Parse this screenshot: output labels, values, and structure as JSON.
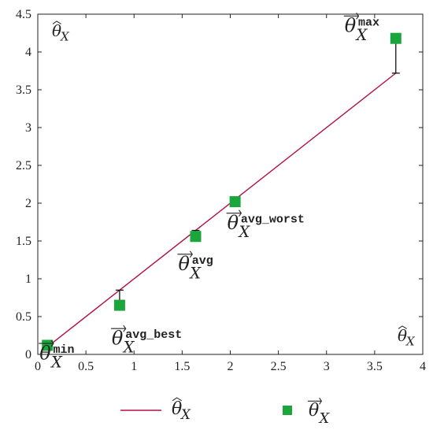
{
  "chart_data": {
    "type": "scatter",
    "title": "",
    "xlabel": "",
    "ylabel": "",
    "xlim": [
      0,
      4
    ],
    "ylim": [
      0,
      4.5
    ],
    "xticks": [
      "0",
      "0.5",
      "1",
      "1.5",
      "2",
      "2.5",
      "3",
      "3.5",
      "4"
    ],
    "yticks": [
      "0",
      "0.5",
      "1",
      "1.5",
      "2",
      "2.5",
      "3",
      "3.5",
      "4",
      "4.5"
    ],
    "xtick_values": [
      0,
      0.5,
      1,
      1.5,
      2,
      2.5,
      3,
      3.5,
      4
    ],
    "ytick_values": [
      0,
      0.5,
      1,
      1.5,
      2,
      2.5,
      3,
      3.5,
      4,
      4.5
    ],
    "grid": false,
    "line_series": {
      "name": "θ̂X",
      "color": "#b0104a",
      "x": [
        0.1,
        3.72
      ],
      "y": [
        0.1,
        3.72
      ]
    },
    "point_series": {
      "name": "θ⃗X",
      "color": "#1aa63a",
      "points": [
        {
          "x": 0.1,
          "y": 0.12,
          "sup": "min",
          "err_to": 0.1
        },
        {
          "x": 0.85,
          "y": 0.65,
          "sup": "avg_best",
          "err_to": 0.85
        },
        {
          "x": 1.64,
          "y": 1.56,
          "sup": "avg",
          "err_to": 1.64
        },
        {
          "x": 2.05,
          "y": 2.02,
          "sup": "avg_worst",
          "err_to": 2.05
        },
        {
          "x": 3.72,
          "y": 4.18,
          "sup": "max",
          "err_to": 3.72
        }
      ]
    },
    "annotations": {
      "top_left": "θ̂X",
      "bottom_right": "θ̂X"
    },
    "legend": {
      "placement": "bottom",
      "line_label": "θ̂X",
      "marker_label": "θ⃗X"
    }
  }
}
